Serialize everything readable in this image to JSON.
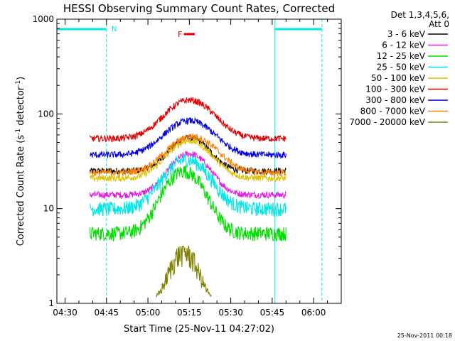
{
  "chart_data": {
    "type": "line",
    "title": "HESSI Observing Summary Count Rates, Corrected",
    "xlabel": "Start Time (25-Nov-11 04:27:02)",
    "ylabel_main": "Corrected Count Rate (s",
    "ylabel_sup1": "-1",
    "ylabel_mid": " detector",
    "ylabel_sup2": "-1",
    "ylabel_end": ")",
    "yscale": "log",
    "ylim": [
      1,
      1000
    ],
    "xlim": [
      "04:27:02",
      "06:10:00"
    ],
    "x_ticks": [
      "04:30",
      "04:45",
      "05:00",
      "05:15",
      "05:30",
      "05:45",
      "06:00"
    ],
    "y_ticks": [
      "1",
      "10",
      "100",
      "1000"
    ],
    "legend": {
      "position": "right",
      "header1": "Det 1,3,4,5,6,",
      "header2": "Att 0",
      "entries": [
        {
          "label": "3 - 6 keV",
          "color": "#000000"
        },
        {
          "label": "6 - 12 keV",
          "color": "#e020e0"
        },
        {
          "label": "12 - 25 keV",
          "color": "#00e000"
        },
        {
          "label": "25 - 50 keV",
          "color": "#00e8e8"
        },
        {
          "label": "50 - 100 keV",
          "color": "#e0c000"
        },
        {
          "label": "100 - 300 keV",
          "color": "#e00000"
        },
        {
          "label": "300 - 800 keV",
          "color": "#0000e8"
        },
        {
          "label": "800 - 7000 keV",
          "color": "#ff8000"
        },
        {
          "label": "7000 - 20000 keV",
          "color": "#808000"
        }
      ]
    },
    "annotations": {
      "night_label": "N",
      "flare_label": "F",
      "night_color": "#00e8e8",
      "flare_color": "#e00000"
    },
    "night_intervals": [
      [
        "04:27:02",
        "04:45:00"
      ],
      [
        "05:46:00",
        "06:03:00"
      ]
    ],
    "flare_interval": [
      "05:13:00",
      "05:17:00"
    ],
    "data_interval": [
      "04:39:00",
      "05:50:00"
    ],
    "series": [
      {
        "name": "3 - 6 keV",
        "color": "#000000",
        "base": 25,
        "peak": 56,
        "peak_time": "05:15:00",
        "width_min": 9
      },
      {
        "name": "6 - 12 keV",
        "color": "#e020e0",
        "base": 14,
        "peak": 38,
        "peak_time": "05:15:00",
        "width_min": 9
      },
      {
        "name": "12 - 25 keV",
        "color": "#00e000",
        "base": 5.5,
        "peak": 25,
        "peak_time": "05:13:00",
        "width_min": 9
      },
      {
        "name": "25 - 50 keV",
        "color": "#00e8e8",
        "base": 10,
        "peak": 33,
        "peak_time": "05:14:00",
        "width_min": 10
      },
      {
        "name": "50 - 100 keV",
        "color": "#e0c000",
        "base": 21,
        "peak": 52,
        "peak_time": "05:15:00",
        "width_min": 10
      },
      {
        "name": "100 - 300 keV",
        "color": "#e00000",
        "base": 55,
        "peak": 140,
        "peak_time": "05:15:00",
        "width_min": 11
      },
      {
        "name": "300 - 800 keV",
        "color": "#0000e8",
        "base": 37,
        "peak": 85,
        "peak_time": "05:15:00",
        "width_min": 11
      },
      {
        "name": "800 - 7000 keV",
        "color": "#ff8000",
        "base": 24,
        "peak": 58,
        "peak_time": "05:16:00",
        "width_min": 11
      },
      {
        "name": "7000 - 20000 keV",
        "color": "#808000",
        "base": 1.2,
        "peak": 3.5,
        "peak_time": "05:13:00",
        "width_min": 6
      }
    ],
    "timestamp": "25-Nov-2011 00:18"
  }
}
